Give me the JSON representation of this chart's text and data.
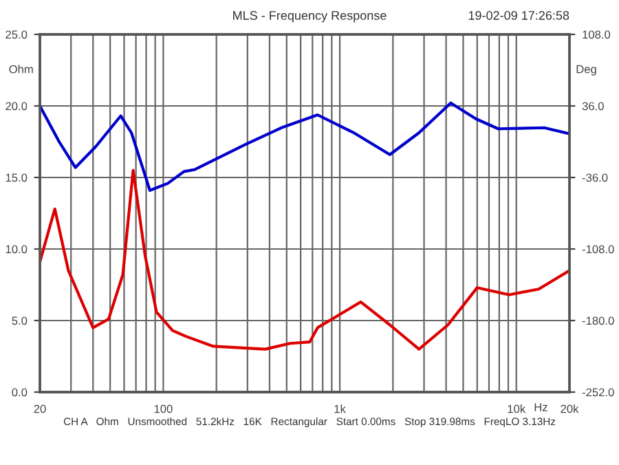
{
  "chart_data": {
    "type": "line",
    "title": "MLS - Frequency Response",
    "xlabel": "Hz",
    "ylabel": "Ohm",
    "y2label": "Deg",
    "annotations": [
      "19-02-09 17:26:58",
      "CH A   Ohm   Unsmoothed   51.2kHz   16K   Rectangular   Start 0.00ms   Stop 319.98ms   FreqLO 3.13Hz"
    ],
    "log": "x",
    "grid": true,
    "legend": false,
    "line_style": "solid",
    "marker": "none",
    "xlim": [
      20,
      20000
    ],
    "xticks": [
      {
        "value": 20,
        "label": "20"
      },
      {
        "value": 30,
        "label": null
      },
      {
        "value": 40,
        "label": null
      },
      {
        "value": 50,
        "label": null
      },
      {
        "value": 60,
        "label": null
      },
      {
        "value": 70,
        "label": null
      },
      {
        "value": 80,
        "label": null
      },
      {
        "value": 90,
        "label": null
      },
      {
        "value": 100,
        "label": "100"
      },
      {
        "value": 200,
        "label": null
      },
      {
        "value": 300,
        "label": null
      },
      {
        "value": 400,
        "label": null
      },
      {
        "value": 500,
        "label": null
      },
      {
        "value": 600,
        "label": null
      },
      {
        "value": 700,
        "label": null
      },
      {
        "value": 800,
        "label": null
      },
      {
        "value": 900,
        "label": null
      },
      {
        "value": 1000,
        "label": "1k"
      },
      {
        "value": 2000,
        "label": null
      },
      {
        "value": 3000,
        "label": null
      },
      {
        "value": 4000,
        "label": null
      },
      {
        "value": 5000,
        "label": null
      },
      {
        "value": 6000,
        "label": null
      },
      {
        "value": 7000,
        "label": null
      },
      {
        "value": 8000,
        "label": null
      },
      {
        "value": 9000,
        "label": null
      },
      {
        "value": 10000,
        "label": "10k"
      },
      {
        "value": 20000,
        "label": "20k"
      }
    ],
    "ylim": [
      0,
      25
    ],
    "yticks": [
      {
        "value": 0,
        "label": "0.0"
      },
      {
        "value": 5,
        "label": "5.0"
      },
      {
        "value": 10,
        "label": "10.0"
      },
      {
        "value": 15,
        "label": "15.0"
      },
      {
        "value": 20,
        "label": "20.0"
      },
      {
        "value": 25,
        "label": "25.0"
      }
    ],
    "y2lim": [
      -252,
      108
    ],
    "y2ticks": [
      {
        "value": -252,
        "label": "-252.0"
      },
      {
        "value": -180,
        "label": "-180.0"
      },
      {
        "value": -108,
        "label": "-108.0"
      },
      {
        "value": -36,
        "label": "-36.0"
      },
      {
        "value": 36,
        "label": "36.0"
      },
      {
        "value": 108,
        "label": "108.0"
      }
    ],
    "series": [
      {
        "color": "#dd0000",
        "axis": "y",
        "x": [
          20,
          24.3,
          29,
          40,
          49,
          59,
          67.5,
          79,
          91.5,
          113,
          134,
          192,
          378,
          522,
          675,
          748,
          1313,
          1920,
          2810,
          4100,
          6000,
          9100,
          13400,
          20000
        ],
        "values": [
          9.1,
          12.8,
          8.5,
          4.5,
          5.1,
          8.2,
          15.5,
          9.5,
          5.6,
          4.3,
          3.9,
          3.2,
          3.0,
          3.4,
          3.5,
          4.5,
          6.3,
          4.7,
          3.0,
          4.7,
          7.3,
          6.8,
          7.2,
          8.5
        ]
      },
      {
        "color": "#0000cc",
        "axis": "y2",
        "x": [
          20,
          25.7,
          31.8,
          41.4,
          57.4,
          66,
          84,
          106,
          131,
          151,
          290,
          466,
          748,
          1200,
          1920,
          2810,
          4250,
          5900,
          7900,
          14400,
          20000
        ],
        "values": [
          36,
          0,
          -26,
          -5,
          26,
          9,
          -49,
          -42,
          -30,
          -28,
          -3,
          14,
          27,
          9,
          -13,
          9,
          39,
          23,
          13,
          14,
          8
        ]
      }
    ]
  }
}
